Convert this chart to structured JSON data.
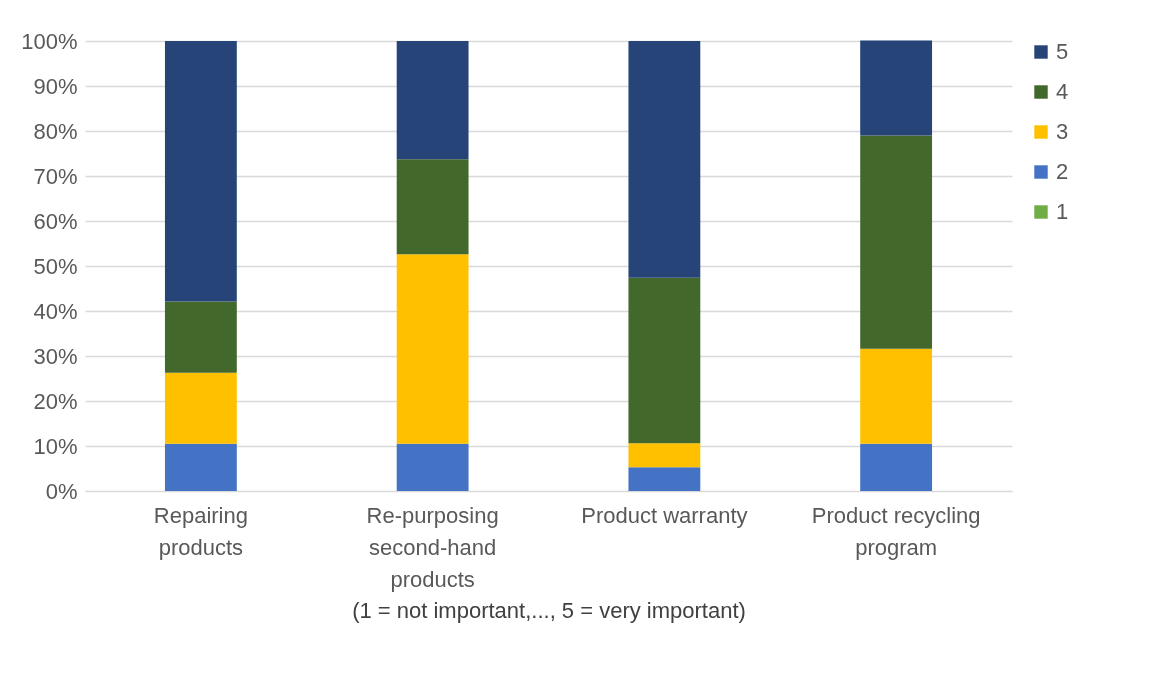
{
  "chart_data": {
    "type": "bar",
    "stacked": true,
    "xlabel": "(1 = not important,..., 5 = very important)",
    "categories": [
      "Repairing products",
      "Re-purposing second-hand products",
      "Product warranty",
      "Product recycling program"
    ],
    "series": [
      {
        "name": "1",
        "color": "#70ad47",
        "values": [
          0,
          0,
          0,
          0
        ]
      },
      {
        "name": "2",
        "color": "#4472c4",
        "values": [
          10.5,
          10.5,
          5.3,
          10.5
        ]
      },
      {
        "name": "3",
        "color": "#ffc000",
        "values": [
          15.8,
          42.1,
          5.3,
          21.1
        ]
      },
      {
        "name": "4",
        "color": "#43682b",
        "values": [
          15.8,
          21.1,
          36.8,
          47.4
        ]
      },
      {
        "name": "5",
        "color": "#264478",
        "values": [
          57.9,
          26.3,
          52.6,
          21.1
        ]
      }
    ],
    "ylim": [
      0,
      100
    ],
    "yticks": [
      {
        "value": 0,
        "label": "0%"
      },
      {
        "value": 10,
        "label": "10%"
      },
      {
        "value": 20,
        "label": "20%"
      },
      {
        "value": 30,
        "label": "30%"
      },
      {
        "value": 40,
        "label": "40%"
      },
      {
        "value": 50,
        "label": "50%"
      },
      {
        "value": 60,
        "label": "60%"
      },
      {
        "value": 70,
        "label": "70%"
      },
      {
        "value": 80,
        "label": "80%"
      },
      {
        "value": 90,
        "label": "90%"
      },
      {
        "value": 100,
        "label": "100%"
      }
    ],
    "grid": "y",
    "legend": "right"
  }
}
